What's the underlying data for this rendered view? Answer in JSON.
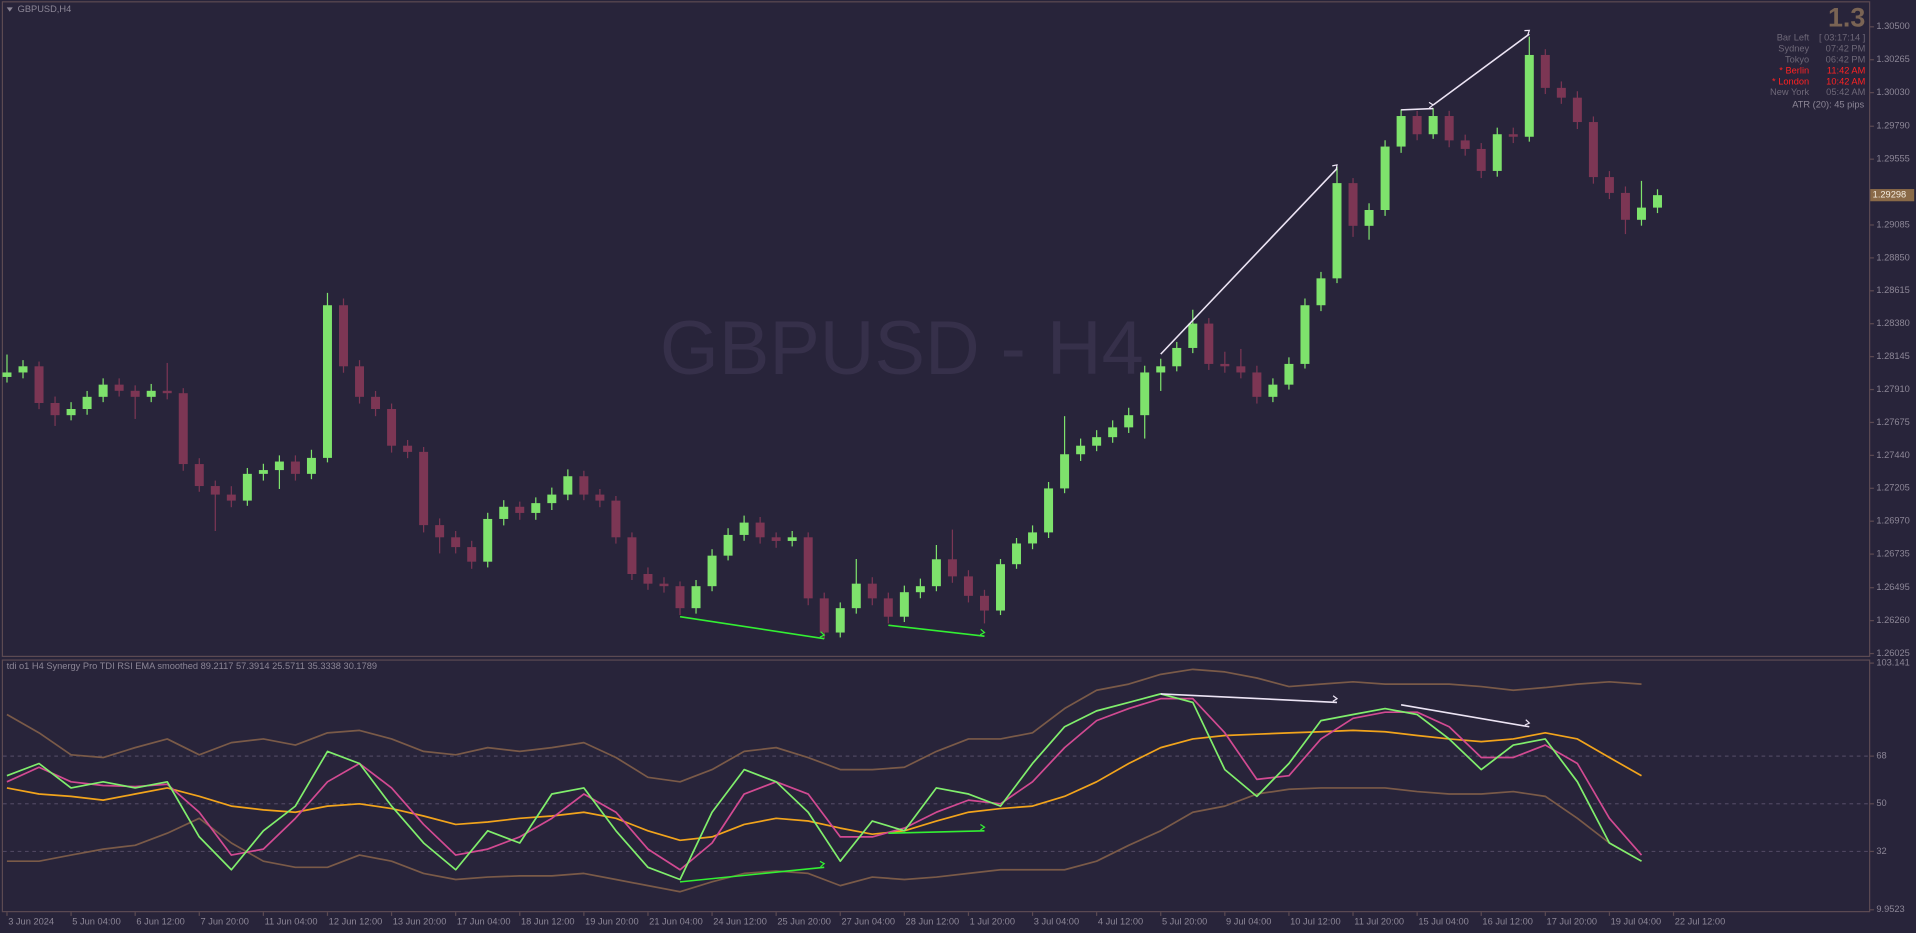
{
  "chart_data": [
    {
      "type": "candlestick",
      "title": "GBPUSD,H4",
      "watermark": "GBPUSD - H4",
      "up_color": "#7ee26c",
      "down_color": "#7c3654",
      "xlim": [
        -0.4,
        116.2
      ],
      "ylim": [
        1.26009,
        1.30674
      ],
      "xticks": [
        {
          "value": 0,
          "label": "3 Jun 2024"
        },
        {
          "value": 4,
          "label": "5 Jun 04:00"
        },
        {
          "value": 8,
          "label": "6 Jun 12:00"
        },
        {
          "value": 12,
          "label": "7 Jun 20:00"
        },
        {
          "value": 16,
          "label": "11 Jun 04:00"
        },
        {
          "value": 20,
          "label": "12 Jun 12:00"
        },
        {
          "value": 24,
          "label": "13 Jun 20:00"
        },
        {
          "value": 28,
          "label": "17 Jun 04:00"
        },
        {
          "value": 32,
          "label": "18 Jun 12:00"
        },
        {
          "value": 36,
          "label": "19 Jun 20:00"
        },
        {
          "value": 40,
          "label": "21 Jun 04:00"
        },
        {
          "value": 44,
          "label": "24 Jun 12:00"
        },
        {
          "value": 48,
          "label": "25 Jun 20:00"
        },
        {
          "value": 52,
          "label": "27 Jun 04:00"
        },
        {
          "value": 56,
          "label": "28 Jun 12:00"
        },
        {
          "value": 60,
          "label": "1 Jul 20:00"
        },
        {
          "value": 64,
          "label": "3 Jul 04:00"
        },
        {
          "value": 68,
          "label": "4 Jul 12:00"
        },
        {
          "value": 72,
          "label": "5 Jul 20:00"
        },
        {
          "value": 76,
          "label": "9 Jul 04:00"
        },
        {
          "value": 80,
          "label": "10 Jul 12:00"
        },
        {
          "value": 84,
          "label": "11 Jul 20:00"
        },
        {
          "value": 88,
          "label": "15 Jul 04:00"
        },
        {
          "value": 92,
          "label": "16 Jul 12:00"
        },
        {
          "value": 96,
          "label": "17 Jul 20:00"
        },
        {
          "value": 100,
          "label": "19 Jul 04:00"
        },
        {
          "value": 104,
          "label": "22 Jul 12:00"
        }
      ],
      "yticks": [
        {
          "value": 1.305,
          "label": "1.30500"
        },
        {
          "value": 1.30265,
          "label": "1.30265"
        },
        {
          "value": 1.3003,
          "label": "1.30030"
        },
        {
          "value": 1.2979,
          "label": "1.29790"
        },
        {
          "value": 1.29555,
          "label": "1.29555"
        },
        {
          "value": 1.29085,
          "label": "1.29085"
        },
        {
          "value": 1.2885,
          "label": "1.28850"
        },
        {
          "value": 1.28615,
          "label": "1.28615"
        },
        {
          "value": 1.2838,
          "label": "1.28380"
        },
        {
          "value": 1.28145,
          "label": "1.28145"
        },
        {
          "value": 1.2791,
          "label": "1.27910"
        },
        {
          "value": 1.27675,
          "label": "1.27675"
        },
        {
          "value": 1.2744,
          "label": "1.27440"
        },
        {
          "value": 1.27205,
          "label": "1.27205"
        },
        {
          "value": 1.2697,
          "label": "1.26970"
        },
        {
          "value": 1.26735,
          "label": "1.26735"
        },
        {
          "value": 1.26495,
          "label": "1.26495"
        },
        {
          "value": 1.2626,
          "label": "1.26260"
        },
        {
          "value": 1.26025,
          "label": "1.26025"
        }
      ],
      "open": [
        1.28,
        1.28032,
        1.28076,
        1.27814,
        1.27727,
        1.27771,
        1.27858,
        1.27945,
        1.27901,
        1.27858,
        1.27901,
        1.27884,
        1.27378,
        1.27221,
        1.2716,
        1.27117,
        1.27308,
        1.27335,
        1.27396,
        1.27308,
        1.27422,
        1.28512,
        1.28076,
        1.27858,
        1.27771,
        1.27509,
        1.27465,
        1.26942,
        1.26855,
        1.26785,
        1.26681,
        1.26986,
        1.27073,
        1.27029,
        1.27099,
        1.2716,
        1.27291,
        1.2716,
        1.27117,
        1.26855,
        1.26593,
        1.26524,
        1.26506,
        1.26349,
        1.26506,
        1.26724,
        1.26872,
        1.2696,
        1.26855,
        1.26829,
        1.26855,
        1.26419,
        1.26175,
        1.26349,
        1.26524,
        1.26419,
        1.26288,
        1.26463,
        1.26506,
        1.26698,
        1.26576,
        1.26437,
        1.26332,
        1.26663,
        1.26811,
        1.2689,
        1.27204,
        1.27448,
        1.27509,
        1.2757,
        1.2764,
        1.27727,
        1.28032,
        1.28076,
        1.28207,
        1.28381,
        1.28093,
        1.28076,
        1.28032,
        1.27858,
        1.27945,
        1.28093,
        1.28512,
        1.28704,
        1.29384,
        1.29079,
        1.29192,
        1.29645,
        1.29863,
        1.29733,
        1.29863,
        1.29689,
        1.29628,
        1.29471,
        1.29733,
        1.29715,
        1.30299,
        1.30064,
        1.29994,
        1.2982,
        1.29427,
        1.29314,
        1.29122,
        1.29209
      ],
      "high": [
        1.2816,
        1.2812,
        1.2811,
        1.2786,
        1.2782,
        1.279,
        1.2799,
        1.2799,
        1.2794,
        1.2795,
        1.281,
        1.2792,
        1.2742,
        1.2726,
        1.2722,
        1.2735,
        1.2738,
        1.2744,
        1.2744,
        1.2748,
        1.286,
        1.2856,
        1.2812,
        1.279,
        1.2781,
        1.2755,
        1.275,
        1.2699,
        1.269,
        1.2683,
        1.2703,
        1.2712,
        1.2711,
        1.2714,
        1.2721,
        1.2734,
        1.2733,
        1.272,
        1.2715,
        1.2689,
        1.2664,
        1.2657,
        1.2654,
        1.2655,
        1.2677,
        1.2692,
        1.2701,
        1.27,
        1.2689,
        1.269,
        1.2689,
        1.2646,
        1.2639,
        1.267,
        1.2657,
        1.2646,
        1.2651,
        1.2656,
        1.268,
        1.2691,
        1.2662,
        1.2648,
        1.267,
        1.2685,
        1.2694,
        1.2725,
        1.2772,
        1.2756,
        1.2762,
        1.2769,
        1.2778,
        1.2808,
        1.2813,
        1.2825,
        1.2848,
        1.2842,
        1.2818,
        1.282,
        1.2808,
        1.2799,
        1.2814,
        1.2856,
        1.2875,
        1.295,
        1.2942,
        1.2924,
        1.2969,
        1.2991,
        1.299,
        1.2992,
        1.299,
        1.2973,
        1.2967,
        1.2978,
        1.2978,
        1.3043,
        1.3034,
        1.3011,
        1.3004,
        1.2986,
        1.2947,
        1.2936,
        1.294,
        1.2934
      ],
      "low": [
        1.2796,
        1.2799,
        1.2777,
        1.2765,
        1.2769,
        1.2773,
        1.2782,
        1.2786,
        1.277,
        1.2782,
        1.2784,
        1.2733,
        1.2718,
        1.269,
        1.2707,
        1.2708,
        1.2726,
        1.272,
        1.2726,
        1.2727,
        1.2739,
        1.2803,
        1.2781,
        1.2772,
        1.2746,
        1.2742,
        1.2689,
        1.2674,
        1.2674,
        1.2663,
        1.2664,
        1.2694,
        1.2698,
        1.2698,
        1.2705,
        1.2712,
        1.2712,
        1.2707,
        1.2681,
        1.2655,
        1.2648,
        1.2646,
        1.263,
        1.2631,
        1.2647,
        1.2669,
        1.2683,
        1.2681,
        1.2678,
        1.2679,
        1.2637,
        1.2613,
        1.2614,
        1.2631,
        1.2637,
        1.2624,
        1.2625,
        1.2642,
        1.2647,
        1.2653,
        1.2639,
        1.2624,
        1.263,
        1.2663,
        1.2677,
        1.2685,
        1.2717,
        1.274,
        1.2747,
        1.2753,
        1.276,
        1.2756,
        1.279,
        1.2804,
        1.2817,
        1.2805,
        1.2803,
        1.2799,
        1.2781,
        1.2782,
        1.2791,
        1.2806,
        1.2847,
        1.2867,
        1.29,
        1.2898,
        1.2915,
        1.296,
        1.2969,
        1.297,
        1.2964,
        1.2958,
        1.2942,
        1.2943,
        1.2967,
        1.2968,
        1.3002,
        1.2995,
        1.2977,
        1.2938,
        1.2927,
        1.2902,
        1.2908,
        1.2917
      ],
      "close": [
        1.28032,
        1.28076,
        1.27814,
        1.27727,
        1.27771,
        1.27858,
        1.27945,
        1.27901,
        1.27858,
        1.27901,
        1.27884,
        1.27378,
        1.27221,
        1.2716,
        1.27117,
        1.27308,
        1.27335,
        1.27396,
        1.27308,
        1.27422,
        1.28512,
        1.28076,
        1.27858,
        1.27771,
        1.27509,
        1.27465,
        1.26942,
        1.26855,
        1.26785,
        1.26681,
        1.26986,
        1.27073,
        1.27029,
        1.27099,
        1.2716,
        1.27291,
        1.2716,
        1.27117,
        1.26855,
        1.26593,
        1.26524,
        1.26506,
        1.26349,
        1.26506,
        1.26724,
        1.26872,
        1.2696,
        1.26855,
        1.26829,
        1.26855,
        1.26419,
        1.26175,
        1.26349,
        1.26524,
        1.26419,
        1.26288,
        1.26463,
        1.26506,
        1.26698,
        1.26576,
        1.26437,
        1.26332,
        1.26663,
        1.26811,
        1.2689,
        1.27204,
        1.27448,
        1.27509,
        1.2757,
        1.2764,
        1.27727,
        1.28032,
        1.28076,
        1.28207,
        1.28381,
        1.28093,
        1.28076,
        1.28032,
        1.27858,
        1.27945,
        1.28093,
        1.28512,
        1.28704,
        1.29384,
        1.29079,
        1.29192,
        1.29645,
        1.29863,
        1.29733,
        1.29863,
        1.29689,
        1.29628,
        1.29471,
        1.29733,
        1.29715,
        1.30299,
        1.30064,
        1.29994,
        1.2982,
        1.29427,
        1.29314,
        1.29122,
        1.29209,
        1.29298
      ],
      "divergences": [
        {
          "color": "#ece4f4",
          "x": [
            72,
            83
          ],
          "y": [
            1.28163,
            1.29488
          ]
        },
        {
          "color": "#ece4f4",
          "x": [
            87,
            89
          ],
          "y": [
            1.29907,
            1.29916
          ]
        },
        {
          "color": "#ece4f4",
          "x": [
            89,
            95
          ],
          "y": [
            1.29942,
            1.30448
          ]
        },
        {
          "color": "#33f033",
          "x": [
            42,
            51
          ],
          "y": [
            1.26288,
            1.26131
          ]
        },
        {
          "color": "#33f033",
          "x": [
            55,
            61
          ],
          "y": [
            1.26227,
            1.26149
          ]
        }
      ]
    },
    {
      "type": "line",
      "title": "tdi o1 H4 Synergy Pro TDI RSI EMA smoothed  89.2117 57.3914 25.5711 35.3338 30.1789",
      "ylim": [
        9.9523,
        103.141
      ],
      "yticks": [
        103.141,
        68,
        50,
        32,
        9.9523
      ],
      "levels": [
        68,
        50,
        32
      ],
      "x": [
        0,
        2,
        4,
        6,
        8,
        10,
        12,
        14,
        16,
        18,
        20,
        22,
        24,
        26,
        28,
        30,
        32,
        34,
        36,
        38,
        40,
        42,
        44,
        46,
        48,
        50,
        52,
        54,
        56,
        58,
        60,
        62,
        64,
        66,
        68,
        70,
        72,
        74,
        76,
        78,
        80,
        82,
        84,
        86,
        88,
        90,
        92,
        94,
        96,
        98,
        100,
        102
      ],
      "series": [
        {
          "color": "#7a5a48",
          "values": [
            83.7,
            76.8,
            68.5,
            67.5,
            71.2,
            74.5,
            68.5,
            73.1,
            74.5,
            72.2,
            76.8,
            77.7,
            74.5,
            69.8,
            68.5,
            71.2,
            69.8,
            71.2,
            73.1,
            67.5,
            60.0,
            58.3,
            62.9,
            69.8,
            71.2,
            67.5,
            62.9,
            62.9,
            63.8,
            69.8,
            74.5,
            74.5,
            76.8,
            86.0,
            92.9,
            95.2,
            98.9,
            100.8,
            99.8,
            97.5,
            94.3,
            95.2,
            96.1,
            95.2,
            95.2,
            95.2,
            94.3,
            92.9,
            93.9,
            95.2,
            96.1,
            95.2
          ]
        },
        {
          "color": "#7a5a48",
          "values": [
            28.3,
            28.3,
            30.6,
            32.9,
            34.3,
            38.9,
            44.5,
            35.2,
            28.3,
            26.0,
            26.0,
            30.6,
            28.3,
            23.7,
            21.4,
            22.3,
            22.8,
            22.8,
            23.7,
            21.4,
            19.1,
            16.8,
            20.5,
            23.7,
            24.6,
            23.7,
            19.1,
            22.3,
            21.4,
            22.3,
            23.7,
            25.1,
            25.1,
            25.1,
            28.3,
            34.3,
            39.8,
            46.8,
            49.1,
            53.7,
            55.5,
            56.0,
            56.0,
            56.0,
            54.6,
            53.7,
            53.7,
            54.6,
            52.8,
            44.5,
            35.2,
            28.3
          ]
        },
        {
          "color": "#f2a41c",
          "values": [
            56.0,
            53.7,
            52.8,
            51.4,
            53.7,
            56.0,
            52.8,
            49.1,
            47.7,
            46.8,
            49.1,
            50.0,
            48.2,
            45.4,
            42.2,
            43.1,
            44.5,
            45.4,
            46.8,
            44.5,
            39.8,
            36.2,
            37.5,
            42.2,
            44.5,
            43.5,
            40.8,
            38.5,
            39.8,
            43.5,
            46.8,
            48.2,
            49.1,
            52.8,
            58.3,
            65.2,
            71.2,
            74.5,
            75.8,
            76.3,
            76.8,
            77.2,
            77.7,
            77.2,
            75.8,
            74.5,
            73.5,
            74.5,
            76.8,
            74.5,
            67.5,
            60.6
          ]
        },
        {
          "color": "#d24a92",
          "values": [
            58.3,
            63.8,
            58.3,
            56.9,
            56.5,
            57.4,
            46.8,
            30.6,
            32.9,
            44.5,
            58.3,
            65.2,
            56.0,
            42.2,
            30.6,
            32.9,
            37.5,
            44.5,
            53.7,
            46.8,
            32.9,
            25.1,
            35.2,
            53.7,
            58.3,
            53.7,
            37.5,
            37.5,
            40.8,
            46.8,
            51.4,
            50.0,
            58.3,
            71.2,
            81.4,
            86.0,
            89.7,
            89.7,
            76.8,
            59.2,
            60.6,
            74.5,
            82.3,
            84.6,
            84.6,
            79.1,
            67.5,
            67.5,
            72.2,
            65.2,
            44.5,
            30.6
          ]
        },
        {
          "color": "#80ee6c",
          "values": [
            60.6,
            65.2,
            56.0,
            58.3,
            56.0,
            58.3,
            37.5,
            25.1,
            39.8,
            49.1,
            69.8,
            65.2,
            49.1,
            35.2,
            25.1,
            39.8,
            35.2,
            53.7,
            56.0,
            39.8,
            26.0,
            21.4,
            46.8,
            62.9,
            58.3,
            46.8,
            28.3,
            43.5,
            39.8,
            56.0,
            53.7,
            49.1,
            65.2,
            79.1,
            85.1,
            88.3,
            91.5,
            88.3,
            62.9,
            52.8,
            65.2,
            81.4,
            83.7,
            86.0,
            83.7,
            74.5,
            62.9,
            72.2,
            74.5,
            58.3,
            35.2,
            28.3
          ]
        }
      ],
      "divergences": [
        {
          "color": "#ece4f4",
          "x": [
            72,
            83
          ],
          "y": [
            91.5,
            88.3
          ]
        },
        {
          "color": "#ece4f4",
          "x": [
            87,
            95
          ],
          "y": [
            87.4,
            79.1
          ]
        },
        {
          "color": "#33f033",
          "x": [
            42,
            51
          ],
          "y": [
            20.5,
            26.0
          ]
        },
        {
          "color": "#33f033",
          "x": [
            55,
            61
          ],
          "y": [
            38.9,
            39.8
          ]
        }
      ]
    }
  ],
  "info": {
    "value": 1.3,
    "rows": [
      {
        "label": "Bar Left",
        "value": "[ 03:17:14 ]"
      },
      {
        "label": "Sydney",
        "value": "07:42 PM"
      },
      {
        "label": "Tokyo",
        "value": "06:42 PM"
      },
      {
        "label": "* Berlin",
        "value": "11:42 AM",
        "color": "#ff2222"
      },
      {
        "label": "* London",
        "value": "10:42 AM",
        "color": "#ff2222"
      },
      {
        "label": "New York",
        "value": "05:42 AM"
      }
    ],
    "atr": "ATR (20): 45 pips"
  }
}
